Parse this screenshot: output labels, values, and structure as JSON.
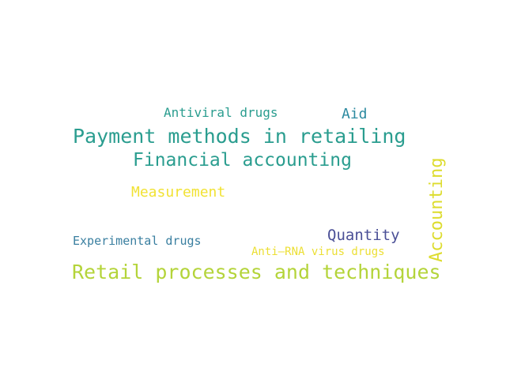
{
  "words": [
    {
      "text": "Antiviral drugs",
      "color": "#2a9d8f"
    },
    {
      "text": "Aid",
      "color": "#2c8aa0"
    },
    {
      "text": "Payment methods in retailing",
      "color": "#2a9d8f"
    },
    {
      "text": "Financial accounting",
      "color": "#2a9d8f"
    },
    {
      "text": "Measurement",
      "color": "#f1e234"
    },
    {
      "text": "Experimental drugs",
      "color": "#3a7fa0"
    },
    {
      "text": "Quantity",
      "color": "#4a4f96"
    },
    {
      "text": "Anti–RNA virus drugs",
      "color": "#ecdf34"
    },
    {
      "text": "Retail processes and techniques",
      "color": "#b4d43a"
    },
    {
      "text": "Accounting",
      "color": "#dddc2e"
    }
  ]
}
